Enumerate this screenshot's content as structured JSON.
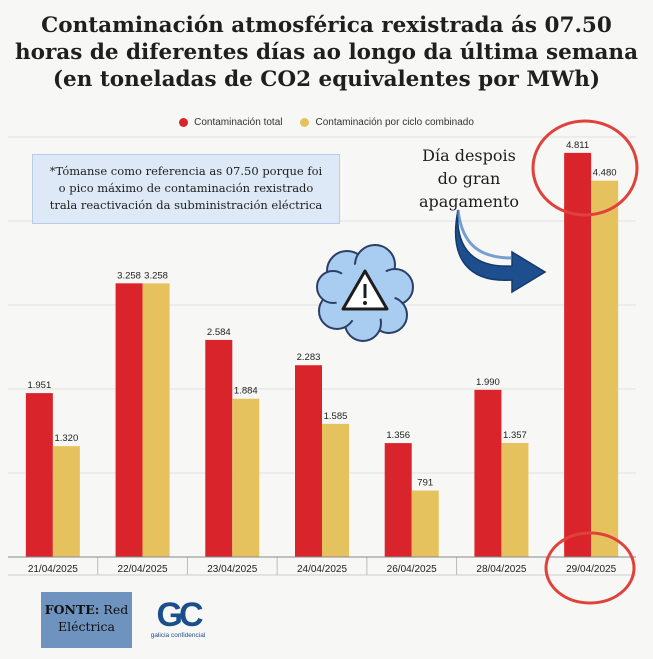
{
  "title_lines": [
    "Contaminación atmosférica rexistrada ás 07.50",
    "horas de diferentes días ao longo da última semana",
    "(en toneladas de CO2 equivalentes por MWh)"
  ],
  "note": {
    "lines": [
      "*Tómanse como referencia as 07.50 porque foi",
      "o pico máximo de contaminación rexistrado",
      "trala reactivación da subministración eléctrica"
    ]
  },
  "annotation": {
    "lines": [
      "Día despois",
      "do gran",
      "apagamento"
    ]
  },
  "source": {
    "label": "FONTE:",
    "name": "Red Eléctrica"
  },
  "logo": {
    "letters": "GC",
    "text": "galicia confidencial"
  },
  "colors": {
    "total": "#d9242b",
    "combined": "#e6c25e",
    "circle": "#e0423b",
    "arrow": "#1d4f8e",
    "warning_cloud": "#a9cdf0"
  },
  "icons": [
    "warning-icon",
    "curved-arrow-icon"
  ],
  "chart_data": {
    "type": "bar",
    "categories": [
      "21/04/2025",
      "22/04/2025",
      "23/04/2025",
      "24/04/2025",
      "26/04/2025",
      "28/04/2025",
      "29/04/2025"
    ],
    "series": [
      {
        "name": "Contaminación total",
        "values": [
          1951,
          3258,
          2584,
          2283,
          1356,
          1990,
          4811
        ],
        "labels": [
          "1.951",
          "3.258",
          "2.584",
          "2.283",
          "1.356",
          "1.990",
          "4.811"
        ]
      },
      {
        "name": "Contaminación por ciclo combinado",
        "values": [
          1320,
          3258,
          1884,
          1585,
          791,
          1357,
          4480
        ],
        "labels": [
          "1.320",
          "3.258",
          "1.884",
          "1.585",
          "791",
          "1.357",
          "4.480"
        ]
      }
    ],
    "ylim": [
      0,
      5000
    ],
    "grid": true,
    "legend_position": "top-center",
    "highlighted_category": "29/04/2025"
  }
}
